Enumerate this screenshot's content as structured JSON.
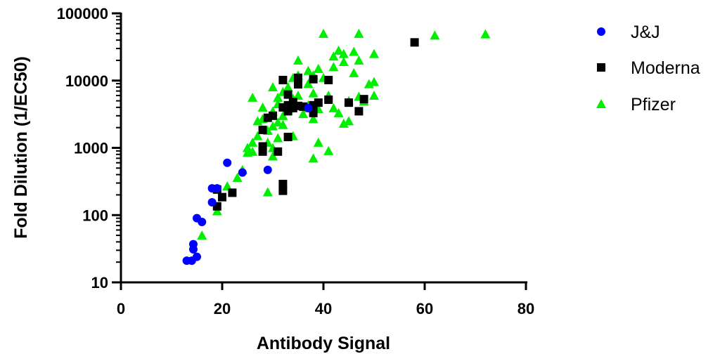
{
  "chart_data": {
    "type": "scatter",
    "xlabel": "Antibody Signal",
    "ylabel": "Fold Dilution  (1/EC50)",
    "xlim": [
      0,
      80
    ],
    "ylim": [
      10,
      100000
    ],
    "yscale": "log",
    "x_ticks": [
      "0",
      "20",
      "40",
      "60",
      "80"
    ],
    "y_ticks": [
      "10",
      "100",
      "1000",
      "10000",
      "100000"
    ],
    "legend_position": "top-right",
    "series": [
      {
        "name": "J&J",
        "marker": "circle",
        "color": "#0000ff",
        "points": [
          [
            13,
            21
          ],
          [
            14,
            21
          ],
          [
            14.3,
            31
          ],
          [
            14.3,
            37
          ],
          [
            15,
            24
          ],
          [
            15,
            90
          ],
          [
            16,
            79
          ],
          [
            18,
            250
          ],
          [
            18,
            155
          ],
          [
            19,
            250
          ],
          [
            21,
            600
          ],
          [
            24,
            430
          ],
          [
            29,
            470
          ],
          [
            37,
            3900
          ]
        ]
      },
      {
        "name": "Moderna",
        "marker": "square",
        "color": "#000000",
        "points": [
          [
            19,
            240
          ],
          [
            19,
            135
          ],
          [
            20,
            185
          ],
          [
            22,
            215
          ],
          [
            28,
            1850
          ],
          [
            28,
            1050
          ],
          [
            28,
            880
          ],
          [
            29,
            2800
          ],
          [
            30,
            3000
          ],
          [
            31,
            880
          ],
          [
            32,
            230
          ],
          [
            32,
            290
          ],
          [
            32,
            10200
          ],
          [
            32,
            4000
          ],
          [
            33,
            1450
          ],
          [
            33,
            6200
          ],
          [
            33,
            3500
          ],
          [
            33,
            4300
          ],
          [
            34,
            4800
          ],
          [
            34,
            3900
          ],
          [
            35,
            11000
          ],
          [
            35,
            8800
          ],
          [
            35,
            4200
          ],
          [
            36,
            4100
          ],
          [
            38,
            10500
          ],
          [
            38,
            3300
          ],
          [
            38,
            4300
          ],
          [
            39,
            4700
          ],
          [
            41,
            10200
          ],
          [
            41,
            5200
          ],
          [
            45,
            4700
          ],
          [
            47,
            3500
          ],
          [
            48,
            5300
          ],
          [
            58,
            37000
          ]
        ]
      },
      {
        "name": "Pfizer",
        "marker": "triangle",
        "color": "#00ee00",
        "points": [
          [
            16,
            50
          ],
          [
            19,
            115
          ],
          [
            21,
            270
          ],
          [
            23,
            360
          ],
          [
            24,
            470
          ],
          [
            25,
            850
          ],
          [
            25,
            1000
          ],
          [
            26,
            880
          ],
          [
            26,
            1200
          ],
          [
            26,
            5600
          ],
          [
            27,
            2500
          ],
          [
            27,
            1500
          ],
          [
            28,
            4000
          ],
          [
            28,
            2700
          ],
          [
            29,
            1800
          ],
          [
            29,
            220
          ],
          [
            29,
            1200
          ],
          [
            30,
            3500
          ],
          [
            30,
            2100
          ],
          [
            30,
            8000
          ],
          [
            30,
            1000
          ],
          [
            30,
            750
          ],
          [
            31,
            2400
          ],
          [
            31,
            1400
          ],
          [
            31,
            4500
          ],
          [
            31,
            5600
          ],
          [
            32,
            3000
          ],
          [
            32,
            2200
          ],
          [
            32,
            6800
          ],
          [
            33,
            8000
          ],
          [
            33,
            3800
          ],
          [
            34,
            5400
          ],
          [
            34,
            1500
          ],
          [
            34,
            11000
          ],
          [
            35,
            20000
          ],
          [
            35,
            6000
          ],
          [
            35,
            12000
          ],
          [
            36,
            3200
          ],
          [
            37,
            9000
          ],
          [
            37,
            3900
          ],
          [
            37,
            14000
          ],
          [
            37,
            4300
          ],
          [
            38,
            2700
          ],
          [
            38,
            700
          ],
          [
            38,
            12000
          ],
          [
            38,
            6500
          ],
          [
            39,
            1200
          ],
          [
            39,
            3800
          ],
          [
            39,
            15000
          ],
          [
            40,
            50000
          ],
          [
            40,
            11000
          ],
          [
            41,
            900
          ],
          [
            41,
            6000
          ],
          [
            42,
            3900
          ],
          [
            42,
            23000
          ],
          [
            42,
            16000
          ],
          [
            43,
            28000
          ],
          [
            43,
            3300
          ],
          [
            44,
            2300
          ],
          [
            44,
            25000
          ],
          [
            44,
            19000
          ],
          [
            45,
            5000
          ],
          [
            45,
            2500
          ],
          [
            46,
            13000
          ],
          [
            46,
            27000
          ],
          [
            47,
            50000
          ],
          [
            47,
            20000
          ],
          [
            47,
            5800
          ],
          [
            48,
            4900
          ],
          [
            49,
            8900
          ],
          [
            50,
            9600
          ],
          [
            50,
            6000
          ],
          [
            50,
            25000
          ],
          [
            62,
            47000
          ],
          [
            72,
            49000
          ]
        ]
      }
    ]
  }
}
